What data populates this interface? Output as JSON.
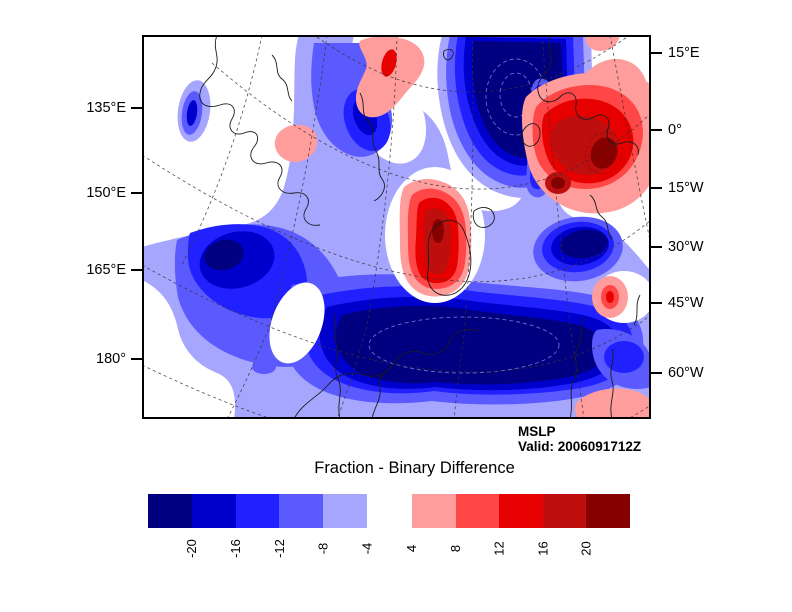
{
  "figure": {
    "title": "Fraction - Binary Difference",
    "variable": "MSLP",
    "valid": "Valid: 2006091712Z"
  },
  "map": {
    "left_ticks": [
      "135°E",
      "150°E",
      "165°E",
      "180°"
    ],
    "right_ticks": [
      "15°E",
      "0°",
      "15°W",
      "30°W",
      "45°W",
      "60°W"
    ]
  },
  "colorbar": {
    "negative": {
      "labels": [
        "-20",
        "-16",
        "-12",
        "-8",
        "-4"
      ],
      "colors": [
        "#000080",
        "#0000CD",
        "#2121FF",
        "#5A5AFF",
        "#A6A6FF"
      ]
    },
    "positive": {
      "labels": [
        "4",
        "8",
        "12",
        "16",
        "20"
      ],
      "colors": [
        "#FF9C9C",
        "#FF4747",
        "#E60000",
        "#BE0E0E",
        "#870000"
      ]
    }
  },
  "chart_data": {
    "type": "heatmap",
    "title": "Fraction - Binary Difference",
    "field": "MSLP",
    "valid_time": "2006091712Z",
    "contour_levels": [
      -20,
      -16,
      -12,
      -8,
      -4,
      4,
      8,
      12,
      16,
      20
    ],
    "negative_fill_colors": [
      "#000080",
      "#0000CD",
      "#2121FF",
      "#5A5AFF",
      "#A6A6FF"
    ],
    "positive_fill_colors": [
      "#FF9C9C",
      "#FF4747",
      "#E60000",
      "#BE0E0E",
      "#870000"
    ],
    "left_axis_ticklabels": [
      "135°E",
      "150°E",
      "165°E",
      "180°"
    ],
    "right_axis_ticklabels": [
      "15°E",
      "0°",
      "15°W",
      "30°W",
      "45°W",
      "60°W"
    ],
    "legend_position": "bottom",
    "projection": "polar map with dashed graticule and coastlines",
    "notable_regions": [
      {
        "sign": "negative",
        "location": "top-center",
        "peak_band": "<-20"
      },
      {
        "sign": "negative",
        "location": "south-central broad area",
        "peak_band": "<-20"
      },
      {
        "sign": "negative",
        "location": "west-central",
        "peak_band": "<-20"
      },
      {
        "sign": "negative",
        "location": "east-central",
        "peak_band": "<-20"
      },
      {
        "sign": "positive",
        "location": "upper-right",
        "peak_band": ">20"
      },
      {
        "sign": "positive",
        "location": "center",
        "peak_band": ">20"
      },
      {
        "sign": "positive",
        "location": "top-center small",
        "peak_band": "12-16"
      },
      {
        "sign": "positive",
        "location": "east-middle small",
        "peak_band": "8-12"
      },
      {
        "sign": "positive",
        "location": "bottom-right edge",
        "peak_band": "4-8"
      },
      {
        "sign": "positive",
        "location": "west small patch",
        "peak_band": "4-8"
      }
    ]
  }
}
